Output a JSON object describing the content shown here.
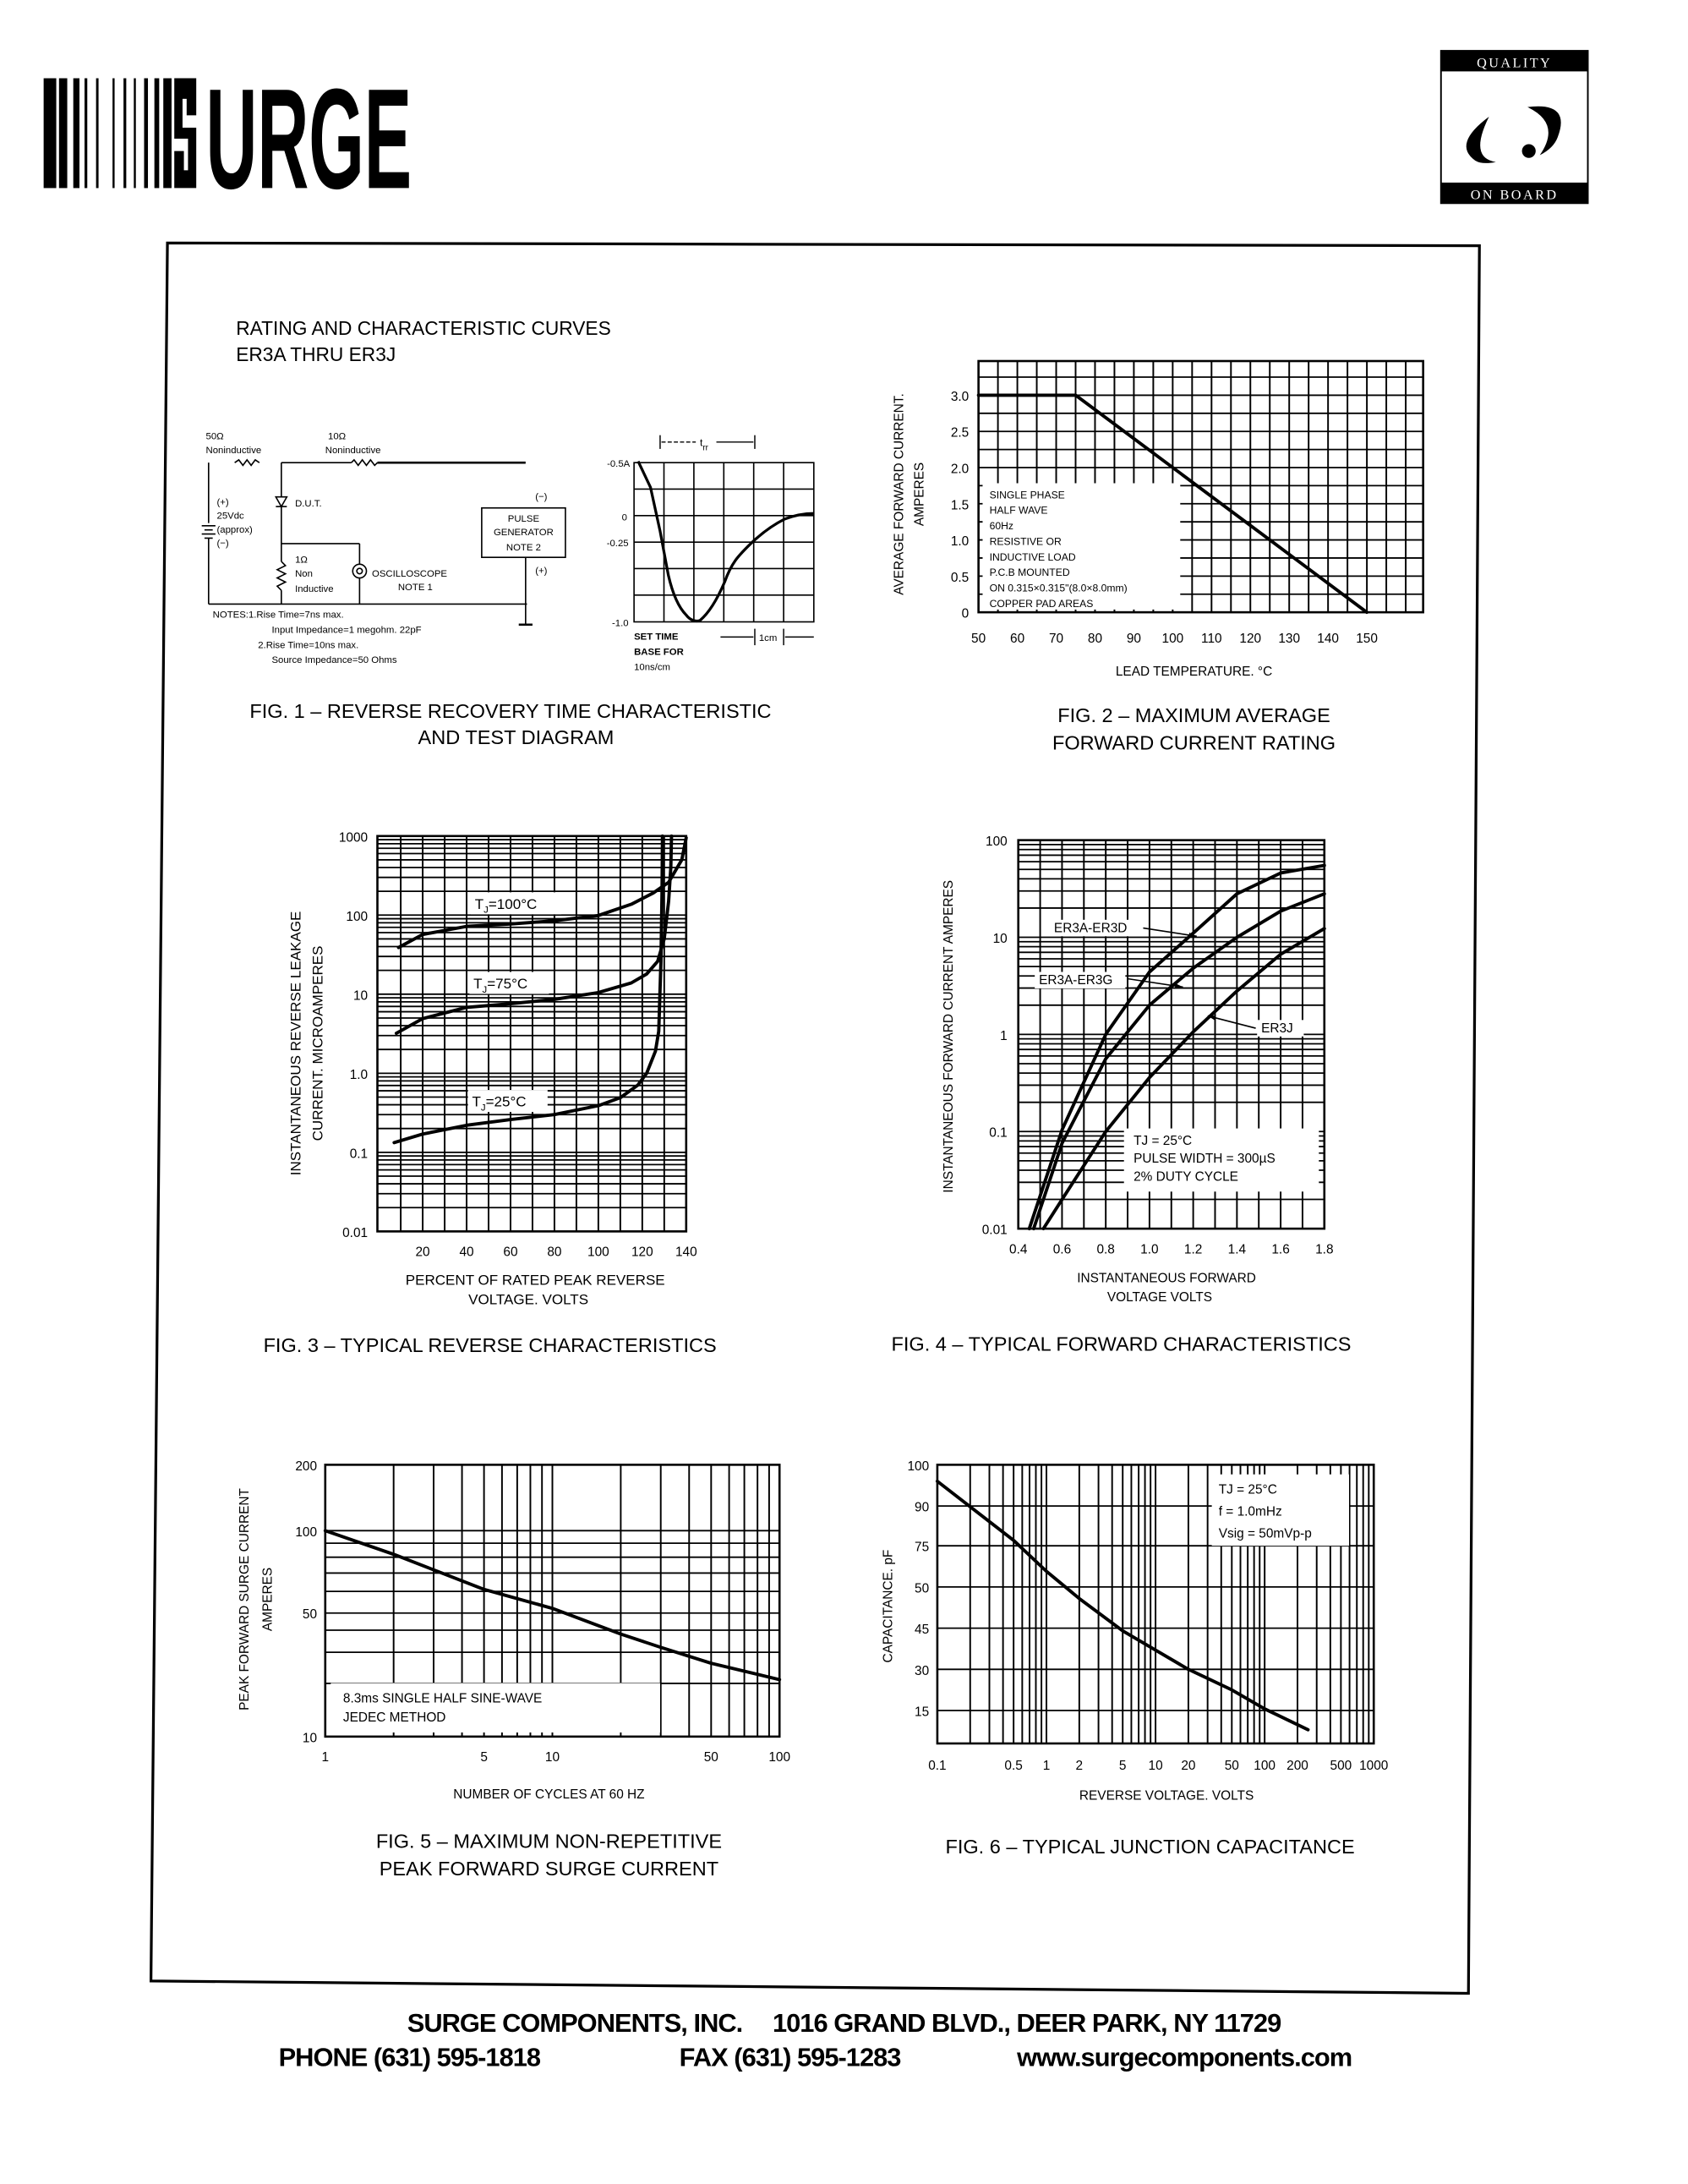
{
  "header": {
    "logo": {
      "text": "SURGE"
    },
    "badge": {
      "top": "QUALITY",
      "bottom": "ON BOARD"
    }
  },
  "page": {
    "title": "RATING AND CHARACTERISTIC CURVES",
    "subtitle": "ER3A THRU ER3J"
  },
  "fig1": {
    "caption": [
      "FIG. 1 – REVERSE RECOVERY TIME CHARACTERISTIC",
      "AND TEST DIAGRAM"
    ],
    "r50_value": "50Ω",
    "r50_type": "Noninductive",
    "r10_value": "10Ω",
    "r10_type": "Noninductive",
    "supply": [
      "(+)",
      "25Vdc",
      "(approx)",
      "(−)"
    ],
    "dut": "D.U.T.",
    "r1": [
      "1Ω",
      "Non",
      "Inductive"
    ],
    "oscilloscope": [
      "OSCILLOSCOPE",
      "NOTE 1"
    ],
    "pulse_generator": [
      "PULSE",
      "GENERATOR",
      "NOTE 2"
    ],
    "pg_minus": "(−)",
    "pg_plus": "(+)",
    "notes": [
      "NOTES:1.Rise Time=7ns max.",
      "Input Impedance=1 megohm. 22pF",
      "2.Rise Time=10ns max.",
      "Source Impedance=50 Ohms"
    ],
    "scope_labels": [
      "-0.5A",
      "0",
      "-0.25",
      "-1.0"
    ],
    "trr_main": "t",
    "trr_sub": "rr",
    "timebase": [
      "SET TIME",
      "BASE FOR",
      "10ns/cm"
    ],
    "division": "1cm"
  },
  "chart_data": [
    {
      "type": "line",
      "title": [
        "FIG. 2 – MAXIMUM AVERAGE",
        "FORWARD CURRENT RATING"
      ],
      "xlabel": "LEAD TEMPERATURE. °C",
      "ylabel": [
        "AVERAGE FORWARD CURRENT.",
        "AMPERES"
      ],
      "x_ticks": [
        "50",
        "60",
        "70",
        "80",
        "90",
        "100",
        "110",
        "120",
        "130",
        "140",
        "150"
      ],
      "y_ticks": [
        "0",
        "0.5",
        "1.0",
        "1.5",
        "2.0",
        "2.5",
        "3.0"
      ],
      "xlim": [
        50,
        164
      ],
      "ylim": [
        0,
        3.45
      ],
      "grid": true,
      "notes": [
        "SINGLE PHASE",
        "HALF WAVE",
        "60Hz",
        "RESISTIVE OR",
        "INDUCTIVE LOAD",
        "P.C.B MOUNTED",
        "ON 0.315×0.315\"(8.0×8.0mm)",
        "COPPER PAD AREAS"
      ],
      "series": [
        {
          "x": [
            50,
            75,
            150
          ],
          "y": [
            3.0,
            3.0,
            0
          ]
        }
      ]
    },
    {
      "type": "line",
      "title": [
        "FIG. 3 – TYPICAL REVERSE CHARACTERISTICS"
      ],
      "xlabel": [
        "PERCENT OF RATED PEAK REVERSE",
        "VOLTAGE. VOLTS"
      ],
      "ylabel": [
        "INSTANTANEOUS REVERSE LEAKAGE",
        "CURRENT. MICROAMPERES"
      ],
      "x_ticks": [
        "20",
        "40",
        "60",
        "80",
        "100",
        "120",
        "140"
      ],
      "y_ticks": [
        "1000",
        "100",
        "10",
        "1.0",
        "0.1",
        "0.01"
      ],
      "xlim": [
        0,
        140
      ],
      "ylim": [
        0.01,
        1000
      ],
      "yscale": "log",
      "grid": true,
      "series": [
        {
          "name": "TJ=100°C",
          "x": [
            9,
            20,
            40,
            60,
            80,
            100,
            115,
            125,
            132,
            138,
            140
          ],
          "y": [
            39,
            57,
            72,
            77,
            85,
            99,
            137,
            190,
            260,
            500,
            950
          ]
        },
        {
          "name": "TJ=75°C",
          "x": [
            8,
            20,
            40,
            60,
            80,
            100,
            115,
            122,
            127,
            130,
            132,
            133,
            133.3
          ],
          "y": [
            3.2,
            4.9,
            6.8,
            7.6,
            8.6,
            10.5,
            13.9,
            18,
            26,
            50,
            150,
            400,
            1000
          ]
        },
        {
          "name": "TJ=25°C",
          "x": [
            7,
            20,
            40,
            60,
            80,
            100,
            110,
            118,
            122,
            126,
            127.5,
            128.5,
            129,
            129.2
          ],
          "y": [
            0.133,
            0.17,
            0.22,
            0.26,
            0.3,
            0.39,
            0.49,
            0.71,
            1.0,
            1.9,
            3.4,
            26,
            200,
            1000
          ]
        }
      ]
    },
    {
      "type": "line",
      "title": [
        "FIG. 4 – TYPICAL FORWARD CHARACTERISTICS"
      ],
      "xlabel": [
        "INSTANTANEOUS FORWARD",
        "VOLTAGE VOLTS"
      ],
      "ylabel": "INSTANTANEOUS FORWARD CURRENT AMPERES",
      "x_ticks": [
        "0.4",
        "0.6",
        "0.8",
        "1.0",
        "1.2",
        "1.4",
        "1.6",
        "1.8"
      ],
      "y_ticks": [
        "100",
        "10",
        "1",
        "0.1",
        "0.01"
      ],
      "xlim": [
        0.4,
        1.8
      ],
      "ylim": [
        0.01,
        100
      ],
      "yscale": "log",
      "grid": true,
      "notes": [
        "TJ = 25°C",
        "PULSE WIDTH = 300µS",
        "2% DUTY CYCLE"
      ],
      "series": [
        {
          "name": "ER3A-ER3D",
          "x": [
            0.45,
            0.6,
            0.8,
            1.0,
            1.2,
            1.4,
            1.6,
            1.8
          ],
          "y": [
            0.01,
            0.104,
            1.0,
            4.4,
            11,
            28,
            46,
            55
          ]
        },
        {
          "name": "ER3A-ER3G",
          "x": [
            0.47,
            0.6,
            0.8,
            1.0,
            1.2,
            1.4,
            1.6,
            1.8
          ],
          "y": [
            0.01,
            0.076,
            0.56,
            2.0,
            4.8,
            10,
            18.6,
            28
          ]
        },
        {
          "name": "ER3J",
          "x": [
            0.515,
            0.6,
            0.8,
            1.0,
            1.2,
            1.4,
            1.6,
            1.8
          ],
          "y": [
            0.01,
            0.02,
            0.1,
            0.36,
            1.06,
            2.8,
            6.7,
            12.3
          ]
        }
      ]
    },
    {
      "type": "line",
      "title": [
        "FIG. 5 – MAXIMUM NON-REPETITIVE",
        "PEAK FORWARD SURGE CURRENT"
      ],
      "xlabel": "NUMBER OF CYCLES AT 60 HZ",
      "ylabel": [
        "PEAK FORWARD SURGE CURRENT",
        "AMPERES"
      ],
      "x_ticks": [
        "1",
        "5",
        "10",
        "50",
        "100"
      ],
      "y_ticks": [
        "200",
        "100",
        "50",
        "10"
      ],
      "xlim": [
        1,
        100
      ],
      "ylim": [
        10,
        200
      ],
      "xscale": "log",
      "yscale": "log",
      "grid": true,
      "notes": [
        "8.3ms  SINGLE  HALF  SINE-WAVE",
        "JEDEC  METHOD"
      ],
      "series": [
        {
          "x": [
            1,
            2,
            5,
            10,
            20,
            30,
            50,
            100
          ],
          "y": [
            100,
            82,
            61,
            52,
            38,
            32,
            26,
            21
          ]
        }
      ]
    },
    {
      "type": "line",
      "title": [
        "FIG. 6 – TYPICAL JUNCTION CAPACITANCE"
      ],
      "xlabel": "REVERSE VOLTAGE. VOLTS",
      "ylabel": "CAPACITANCE. pF",
      "x_ticks": [
        "0.1",
        "0.5",
        "1",
        "2",
        "5",
        "10",
        "20",
        "50",
        "100",
        "200",
        "500",
        "1000"
      ],
      "y_ticks": [
        "100",
        "90",
        "75",
        "50",
        "45",
        "30",
        "15"
      ],
      "xlim": [
        0.1,
        1000
      ],
      "xscale": "log",
      "grid": true,
      "notes": [
        "TJ = 25°C",
        "f = 1.0mHz",
        "Vsig = 50mVp-p"
      ],
      "series": [
        {
          "x": [
            0.1,
            0.5,
            1,
            2,
            5,
            10,
            20,
            50,
            100,
            250
          ],
          "y": [
            96,
            77,
            59.5,
            48.6,
            44,
            37,
            30,
            22.5,
            15.6,
            8
          ]
        }
      ]
    }
  ],
  "footer": {
    "company": "SURGE COMPONENTS, INC.",
    "address": "1016 GRAND BLVD., DEER PARK, NY  11729",
    "phone": "PHONE (631) 595-1818",
    "fax": "FAX  (631) 595-1283",
    "website": "www.surgecomponents.com"
  }
}
